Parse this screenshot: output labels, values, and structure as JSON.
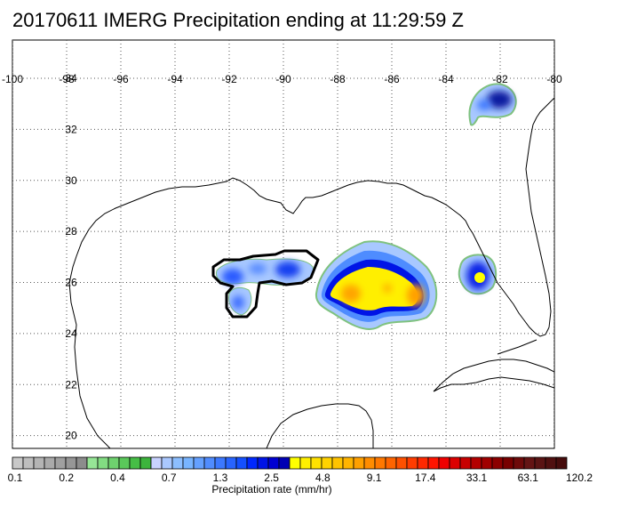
{
  "title": "20170611 IMERG Precipitation ending at 11:29:59 Z",
  "map": {
    "lon_range": [
      -100,
      -80
    ],
    "lat_range": [
      19.5,
      35.5
    ],
    "lon_ticks": [
      -100,
      -98,
      -96,
      -94,
      -92,
      -90,
      -88,
      -86,
      -84,
      -82,
      -80
    ],
    "lat_ticks": [
      20,
      22,
      24,
      26,
      28,
      30,
      32,
      34
    ],
    "grid": "dotted",
    "precip_areas": [
      {
        "name": "central-gulf-cell",
        "lon": -86.8,
        "lat": 25.9,
        "rx": 2.0,
        "ry": 1.35,
        "peak": "orange"
      },
      {
        "name": "western-gulf-cell",
        "lon": -91.0,
        "lat": 26.0,
        "rx": 2.3,
        "ry": 0.6,
        "peak": "blue"
      },
      {
        "name": "western-gulf-tail",
        "lon": -91.8,
        "lat": 25.3,
        "rx": 0.6,
        "ry": 0.8,
        "peak": "blue"
      },
      {
        "name": "tampa-cell",
        "lon": -82.6,
        "lat": 26.4,
        "rx": 0.65,
        "ry": 0.8,
        "peak": "yellow"
      },
      {
        "name": "georgia-cell",
        "lon": -82.1,
        "lat": 33.2,
        "rx": 0.9,
        "ry": 0.55,
        "peak": "navy"
      }
    ]
  },
  "colorbar": {
    "title": "Precipitation rate (mm/hr)",
    "labels": [
      "0.1",
      "0.2",
      "0.4",
      "0.7",
      "1.3",
      "2.5",
      "4.8",
      "9.1",
      "17.4",
      "33.1",
      "63.1",
      "120.2"
    ],
    "colors": [
      "#c8c8c8",
      "#bebebe",
      "#b4b4b4",
      "#aaaaaa",
      "#a0a0a0",
      "#969696",
      "#8c8c8c",
      "#96e696",
      "#82dc82",
      "#6ed26e",
      "#5ac85a",
      "#46be46",
      "#3cb43c",
      "#c8d2ff",
      "#aac8ff",
      "#8cbeff",
      "#78b4ff",
      "#64a0ff",
      "#508cff",
      "#3c78ff",
      "#2864ff",
      "#1450ff",
      "#0028ff",
      "#0014e6",
      "#0000d2",
      "#0000b4",
      "#ffff00",
      "#fff000",
      "#ffe100",
      "#ffd200",
      "#ffc300",
      "#ffb400",
      "#ffa000",
      "#ff8c00",
      "#ff7800",
      "#ff6400",
      "#ff5000",
      "#ff3c00",
      "#ff2800",
      "#ff1400",
      "#f00000",
      "#dc0000",
      "#c80000",
      "#b40000",
      "#a00000",
      "#8c0000",
      "#780000",
      "#6e0a0a",
      "#641414",
      "#5a1414",
      "#501010",
      "#460c0c"
    ]
  }
}
